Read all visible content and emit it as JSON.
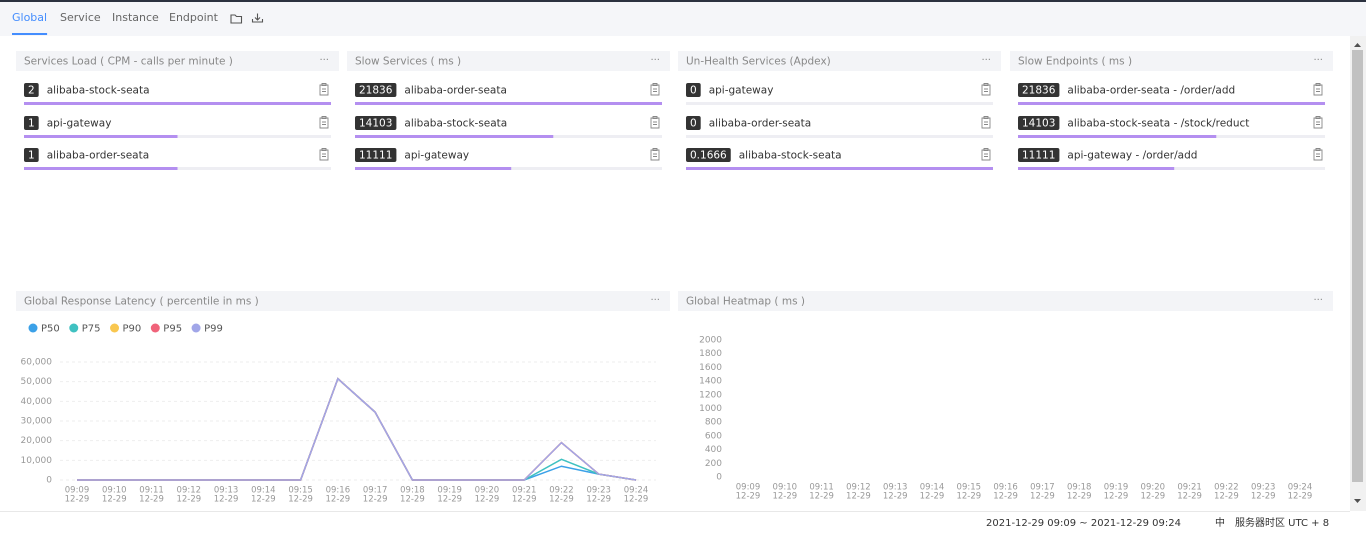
{
  "tabs": [
    "Global",
    "Service",
    "Instance",
    "Endpoint"
  ],
  "panels": [
    {
      "title": "Services Load ( CPM - calls per minute )",
      "items": [
        {
          "value": 2,
          "label": "alibaba-stock-seata"
        },
        {
          "value": 1,
          "label": "api-gateway"
        },
        {
          "value": 1,
          "label": "alibaba-order-seata"
        }
      ]
    },
    {
      "title": "Slow Services ( ms )",
      "items": [
        {
          "value": 21836,
          "label": "alibaba-order-seata"
        },
        {
          "value": 14103,
          "label": "alibaba-stock-seata"
        },
        {
          "value": 11111,
          "label": "api-gateway"
        }
      ]
    },
    {
      "title": "Un-Health Services (Apdex)",
      "items": [
        {
          "value": 0,
          "label": "api-gateway"
        },
        {
          "value": 0,
          "label": "alibaba-order-seata"
        },
        {
          "value": 0.1666,
          "label": "alibaba-stock-seata"
        }
      ]
    },
    {
      "title": "Slow Endpoints ( ms )",
      "items": [
        {
          "value": 21836,
          "label": "alibaba-order-seata - /order/add"
        },
        {
          "value": 14103,
          "label": "alibaba-stock-seata - /stock/reduct"
        },
        {
          "value": 11111,
          "label": "api-gateway - /order/add"
        }
      ]
    }
  ],
  "chart_data": [
    {
      "type": "line",
      "title": "Global Response Latency ( percentile in ms )",
      "categories": [
        "09:09",
        "09:10",
        "09:11",
        "09:12",
        "09:13",
        "09:14",
        "09:15",
        "09:16",
        "09:17",
        "09:18",
        "09:19",
        "09:20",
        "09:21",
        "09:22",
        "09:23",
        "09:24"
      ],
      "x_sublabels": [
        "12-29",
        "12-29",
        "12-29",
        "12-29",
        "12-29",
        "12-29",
        "12-29",
        "12-29",
        "12-29",
        "12-29",
        "12-29",
        "12-29",
        "12-29",
        "12-29",
        "12-29",
        "12-29"
      ],
      "series": [
        {
          "name": "P50",
          "color": "#3ba1e8",
          "values": [
            0,
            0,
            0,
            0,
            0,
            0,
            0,
            51500,
            34500,
            0,
            0,
            0,
            0,
            7000,
            3000,
            0
          ]
        },
        {
          "name": "P75",
          "color": "#3fc1c1",
          "values": [
            0,
            0,
            0,
            0,
            0,
            0,
            0,
            51500,
            34500,
            0,
            0,
            0,
            0,
            10500,
            3000,
            0
          ]
        },
        {
          "name": "P90",
          "color": "#f9c74f",
          "values": [
            0,
            0,
            0,
            0,
            0,
            0,
            0,
            51500,
            34500,
            0,
            0,
            0,
            0,
            19000,
            3000,
            0
          ]
        },
        {
          "name": "P95",
          "color": "#f0637a",
          "values": [
            0,
            0,
            0,
            0,
            0,
            0,
            0,
            51500,
            34500,
            0,
            0,
            0,
            0,
            19000,
            3000,
            0
          ]
        },
        {
          "name": "P99",
          "color": "#a1a6e8",
          "values": [
            0,
            0,
            0,
            0,
            0,
            0,
            0,
            51500,
            34500,
            0,
            0,
            0,
            0,
            19000,
            3000,
            0
          ]
        }
      ],
      "ylim": [
        0,
        60000
      ],
      "yticks": [
        0,
        {
          "value": 10000,
          "label": "10,000"
        },
        {
          "value": 20000,
          "label": "20,000"
        },
        {
          "value": 30000,
          "label": "30,000"
        },
        {
          "value": 40000,
          "label": "40,000"
        },
        {
          "value": 50000,
          "label": "50,000"
        },
        {
          "value": 60000,
          "label": "60,000"
        }
      ],
      "grid": true
    },
    {
      "type": "heatmap",
      "title": "Global Heatmap ( ms )",
      "categories": [
        "09:09",
        "09:10",
        "09:11",
        "09:12",
        "09:13",
        "09:14",
        "09:15",
        "09:16",
        "09:17",
        "09:18",
        "09:19",
        "09:20",
        "09:21",
        "09:22",
        "09:23",
        "09:24"
      ],
      "x_sublabels": [
        "12-29",
        "12-29",
        "12-29",
        "12-29",
        "12-29",
        "12-29",
        "12-29",
        "12-29",
        "12-29",
        "12-29",
        "12-29",
        "12-29",
        "12-29",
        "12-29",
        "12-29",
        "12-29"
      ],
      "ylim": [
        0,
        2000
      ],
      "yticks": [
        0,
        200,
        400,
        600,
        800,
        1000,
        1200,
        1400,
        1600,
        1800,
        2000
      ]
    }
  ],
  "footer": {
    "time_range": "2021-12-29 09:09 ~ 2021-12-29 09:24",
    "language": "中",
    "timezone": "服务器时区 UTC + 8"
  }
}
